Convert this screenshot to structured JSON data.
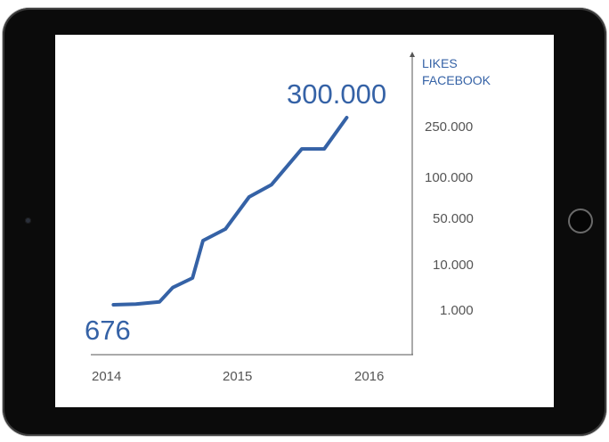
{
  "chart_data": {
    "type": "line",
    "title": "",
    "ylabel_lines": [
      "LIKES",
      "FACEBOOK"
    ],
    "xlabel": "",
    "x_ticks": [
      "2014",
      "2015",
      "2016"
    ],
    "y_ticks": [
      "1.000",
      "10.000",
      "50.000",
      "100.000",
      "250.000"
    ],
    "y_tick_values": [
      1000,
      10000,
      50000,
      100000,
      250000
    ],
    "series": [
      {
        "x": [
          2014.05,
          2014.22,
          2014.4,
          2014.5,
          2014.65,
          2014.73,
          2014.9,
          2015.08,
          2015.25,
          2015.48,
          2015.65,
          2015.82
        ],
        "values": [
          676,
          1500,
          2000,
          5000,
          7000,
          30000,
          40000,
          75000,
          90000,
          180000,
          180000,
          300000
        ]
      }
    ],
    "start_label": "676",
    "end_label": "300.000",
    "line_color": "#3562a6",
    "text_color": "#3562a6",
    "tick_color": "#555555",
    "axis_color": "#555555"
  }
}
